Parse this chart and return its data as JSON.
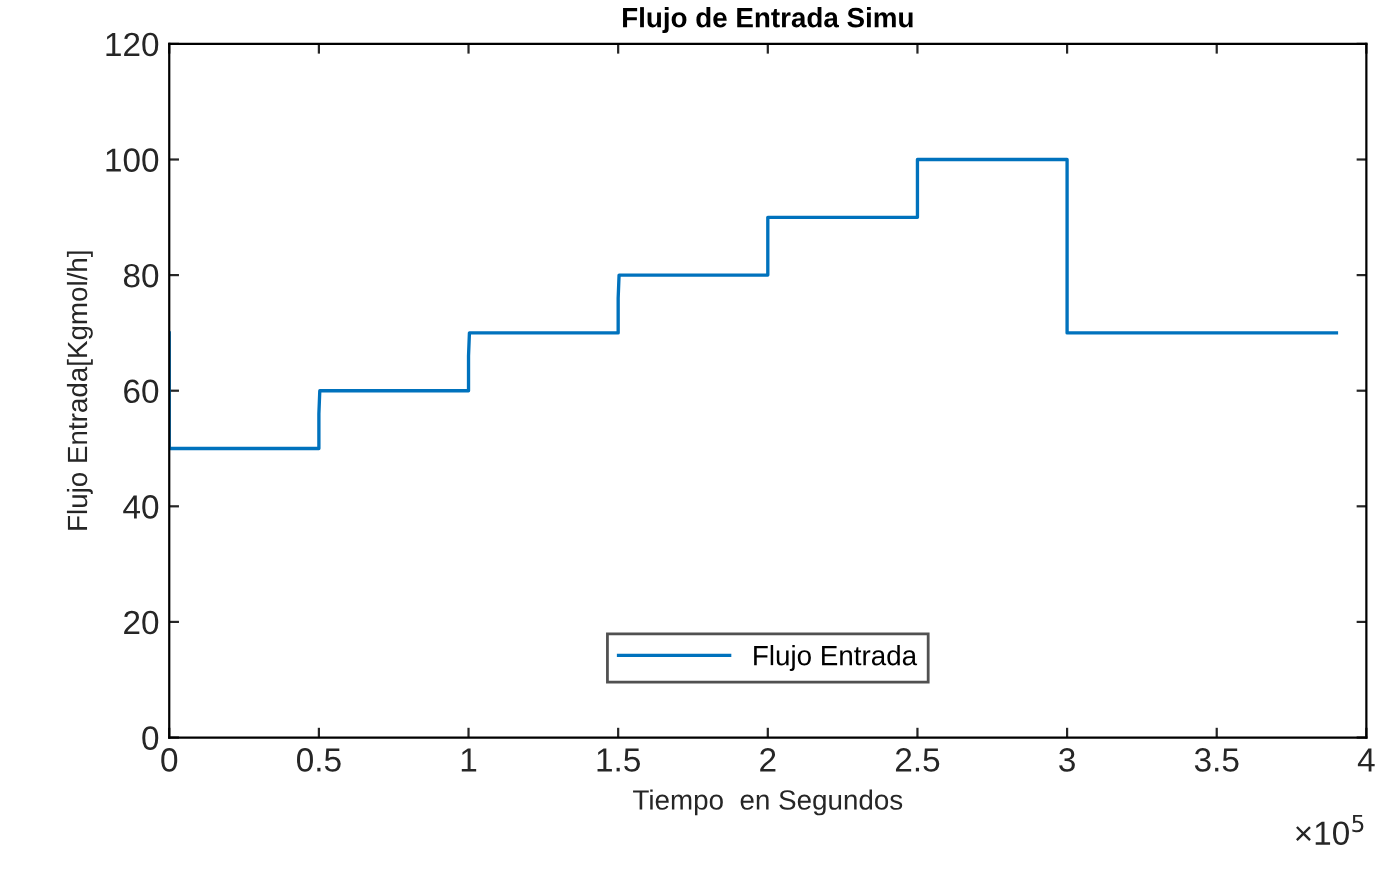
{
  "chart_data": {
    "type": "line",
    "title": "Flujo de Entrada Simu",
    "xlabel": "Tiempo  en Segundos",
    "ylabel": "Flujo Entrada[Kgmol/h]",
    "annotations": [
      "×10$^{5}$"
    ],
    "series": [
      {
        "name": "Flujo Entrada",
        "color": "#0072bd",
        "x": [
          0,
          0,
          0.5,
          0.5,
          0.503,
          1,
          1,
          1.003,
          1.5,
          1.5,
          1.503,
          2,
          2,
          2.5,
          2.5,
          3,
          3,
          3.9
        ],
        "values": [
          70,
          50,
          50,
          56,
          60,
          60,
          66,
          70,
          70,
          76,
          80,
          80,
          90,
          90,
          100,
          100,
          70,
          70
        ]
      }
    ],
    "xlim": [
      0,
      4
    ],
    "xticks": [
      0,
      0.5,
      1,
      1.5,
      2,
      2.5,
      3,
      3.5,
      4
    ],
    "ylim": [
      0,
      120
    ],
    "yticks": [
      0,
      20,
      40,
      60,
      80,
      100,
      120
    ],
    "grid": false,
    "legend": "bottom",
    "marker": "none",
    "line_style": "solid"
  }
}
